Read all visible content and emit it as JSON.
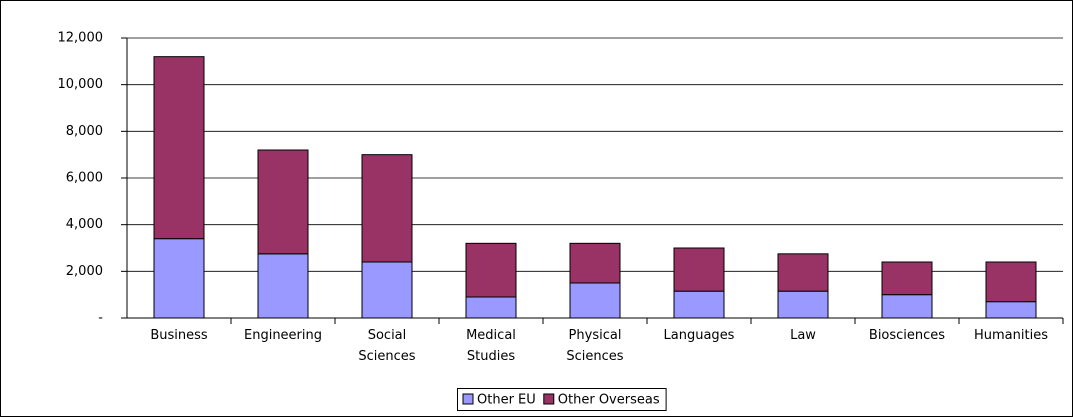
{
  "chart_data": {
    "type": "stacked_bar",
    "categories": [
      "Business",
      "Engineering",
      "Social Sciences",
      "Medical Studies",
      "Physical Sciences",
      "Languages",
      "Law",
      "Biosciences",
      "Humanities"
    ],
    "series": [
      {
        "name": "Other EU",
        "color": "#9999ff",
        "values": [
          3400,
          2750,
          2400,
          900,
          1500,
          1150,
          1150,
          1000,
          700
        ]
      },
      {
        "name": "Other Overseas",
        "color": "#993366",
        "values": [
          7800,
          4450,
          4600,
          2300,
          1700,
          1850,
          1600,
          1400,
          1700
        ]
      }
    ],
    "ylim": [
      0,
      12000
    ],
    "yticks": [
      {
        "value": 0,
        "label": "-"
      },
      {
        "value": 2000,
        "label": "2,000"
      },
      {
        "value": 4000,
        "label": "4,000"
      },
      {
        "value": 6000,
        "label": "6,000"
      },
      {
        "value": 8000,
        "label": "8,000"
      },
      {
        "value": 10000,
        "label": "10,000"
      },
      {
        "value": 12000,
        "label": "12,000"
      }
    ],
    "grid": true,
    "legend": "bottom"
  }
}
